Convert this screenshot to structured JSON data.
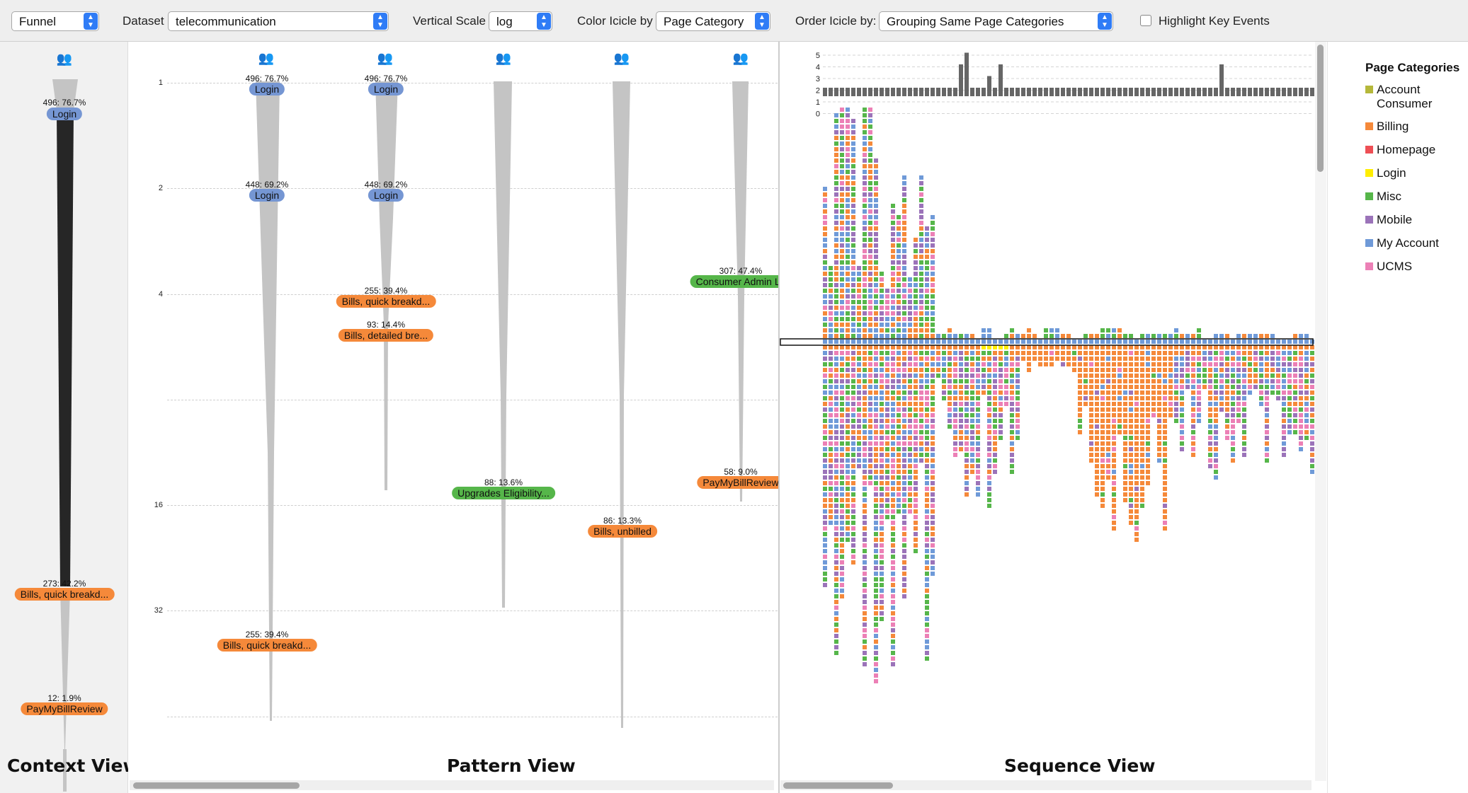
{
  "toolbar": {
    "mode_value": "Funnel",
    "dataset_label": "Dataset",
    "dataset_value": "telecommunication",
    "vscale_label": "Vertical Scale",
    "vscale_value": "log",
    "color_label": "Color Icicle by",
    "color_value": "Page Category",
    "order_label": "Order Icicle by:",
    "order_value": "Grouping Same Page Categories",
    "highlight_label": "Highlight Key Events",
    "highlight_checked": false
  },
  "colors": {
    "account_consumer": "#b5b83a",
    "billing": "#f5893a",
    "homepage": "#ee4f55",
    "login": "#ffee00",
    "misc": "#56b64a",
    "mobile": "#9b73b9",
    "my_account": "#6f9ad8",
    "ucms": "#ec80b6",
    "funnel_dark": "#262626",
    "funnel_gray": "#c4c4c4"
  },
  "context_view": {
    "title": "Context View",
    "nodes": [
      {
        "pct": "496: 76.7%",
        "label": "Login",
        "category": "my_account"
      },
      {
        "pct": "273: 42.2%",
        "label": "Bills, quick breakd...",
        "category": "billing"
      },
      {
        "pct": "12: 1.9%",
        "label": "PayMyBillReview",
        "category": "billing"
      }
    ]
  },
  "pattern_view": {
    "title": "Pattern View",
    "scale_ticks": [
      "1",
      "2",
      "4",
      "16",
      "32"
    ],
    "nodes": [
      {
        "pct": "496: 76.7%",
        "label": "Login",
        "category": "my_account"
      },
      {
        "pct": "448: 69.2%",
        "label": "Login",
        "category": "my_account"
      },
      {
        "pct": "255: 39.4%",
        "label": "Bills, quick breakd...",
        "category": "billing"
      },
      {
        "pct": "496: 76.7%",
        "label": "Login",
        "category": "my_account"
      },
      {
        "pct": "448: 69.2%",
        "label": "Login",
        "category": "my_account"
      },
      {
        "pct": "255: 39.4%",
        "label": "Bills, quick breakd...",
        "category": "billing"
      },
      {
        "pct": "93: 14.4%",
        "label": "Bills, detailed bre...",
        "category": "billing"
      },
      {
        "pct": "88: 13.6%",
        "label": "Upgrades Eligibility...",
        "category": "misc"
      },
      {
        "pct": "86: 13.3%",
        "label": "Bills, unbilled",
        "category": "billing"
      },
      {
        "pct": "307: 47.4%",
        "label": "Consumer Admin La",
        "category": "misc"
      },
      {
        "pct": "58: 9.0%",
        "label": "PayMyBillReview",
        "category": "billing"
      }
    ]
  },
  "sequence_view": {
    "title": "Sequence View",
    "histogram_ticks": [
      "5",
      "4",
      "3",
      "2",
      "1",
      "0"
    ]
  },
  "legend": {
    "title": "Page Categories",
    "items": [
      {
        "label": "Account Consumer",
        "color": "#b5b83a"
      },
      {
        "label": "Billing",
        "color": "#f5893a"
      },
      {
        "label": "Homepage",
        "color": "#ee4f55"
      },
      {
        "label": "Login",
        "color": "#ffee00"
      },
      {
        "label": "Misc",
        "color": "#56b64a"
      },
      {
        "label": "Mobile",
        "color": "#9b73b9"
      },
      {
        "label": "My Account",
        "color": "#6f9ad8"
      },
      {
        "label": "UCMS",
        "color": "#ec80b6"
      }
    ]
  }
}
